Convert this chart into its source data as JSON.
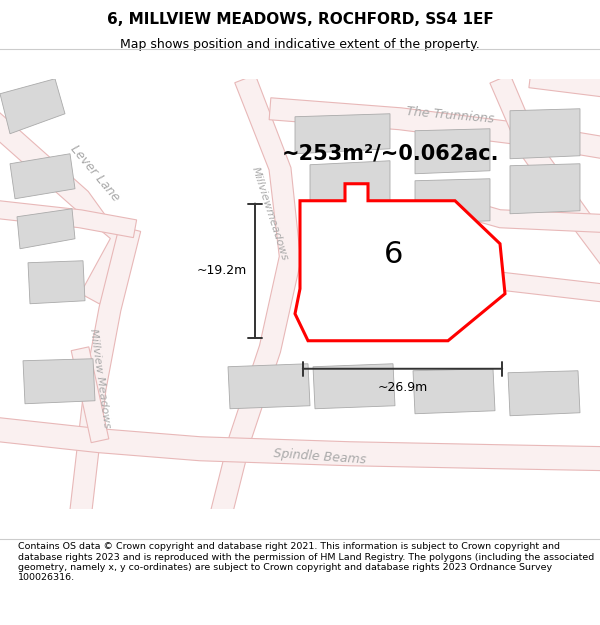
{
  "title": "6, MILLVIEW MEADOWS, ROCHFORD, SS4 1EF",
  "subtitle": "Map shows position and indicative extent of the property.",
  "area_label": "~253m²/~0.062ac.",
  "plot_number": "6",
  "width_label": "~26.9m",
  "height_label": "~19.2m",
  "footer": "Contains OS data © Crown copyright and database right 2021. This information is subject to Crown copyright and database rights 2023 and is reproduced with the permission of HM Land Registry. The polygons (including the associated geometry, namely x, y co-ordinates) are subject to Crown copyright and database rights 2023 Ordnance Survey 100026316.",
  "map_bg": "#f0f0f0",
  "road_color": "#e8b8b8",
  "road_fill": "#f8f0f0",
  "block_face": "#d8d8d8",
  "block_edge": "#aaaaaa",
  "plot_edge": "#ff0000",
  "plot_face": "#ffffff",
  "dim_color": "#333333",
  "street_color": "#aaaaaa",
  "title_fontsize": 11,
  "subtitle_fontsize": 9,
  "area_fontsize": 15,
  "plot_num_fontsize": 22,
  "dim_fontsize": 9,
  "street_fontsize": 9,
  "footer_fontsize": 6.8
}
